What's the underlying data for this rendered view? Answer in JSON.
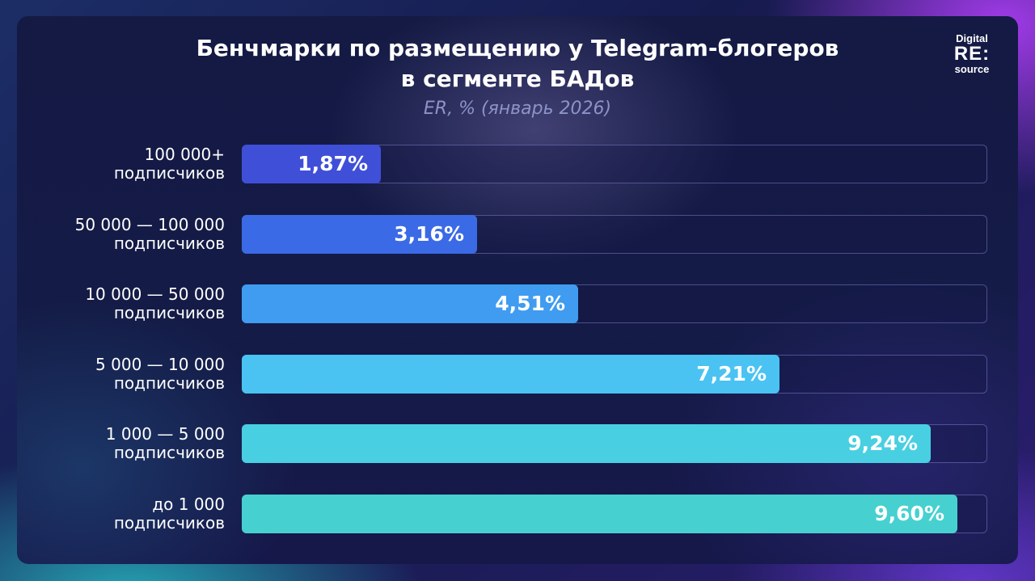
{
  "header": {
    "title_line1": "Бенчмарки по размещению у Telegram-блогеров",
    "title_line2": "в сегменте БАДов",
    "subtitle": "ER, % (январь 2026)"
  },
  "logo": {
    "top": "Digital",
    "mid": "RE:",
    "bot": "source"
  },
  "chart_data": {
    "type": "bar",
    "orientation": "horizontal",
    "title": "Бенчмарки по размещению у Telegram-блогеров в сегменте БАДов",
    "subtitle": "ER, % (январь 2026)",
    "categories": [
      [
        "100 000+",
        "подписчиков"
      ],
      [
        "50 000 — 100 000",
        "подписчиков"
      ],
      [
        "10 000 — 50 000",
        "подписчиков"
      ],
      [
        "5 000 — 10 000",
        "подписчиков"
      ],
      [
        "1  000 —  5 000",
        "подписчиков"
      ],
      [
        "до 1 000",
        "подписчиков"
      ]
    ],
    "values": [
      1.87,
      3.16,
      4.51,
      7.21,
      9.24,
      9.6
    ],
    "value_labels": [
      "1,87%",
      "3,16%",
      "4,51%",
      "7,21%",
      "9,24%",
      "9,60%"
    ],
    "xlim": [
      0,
      10
    ],
    "bar_colors": [
      "#3f4fd8",
      "#3b6ae6",
      "#3f9cf0",
      "#4ac3f2",
      "#48cfe2",
      "#47d0d0"
    ],
    "grid": false,
    "legend": "none"
  }
}
